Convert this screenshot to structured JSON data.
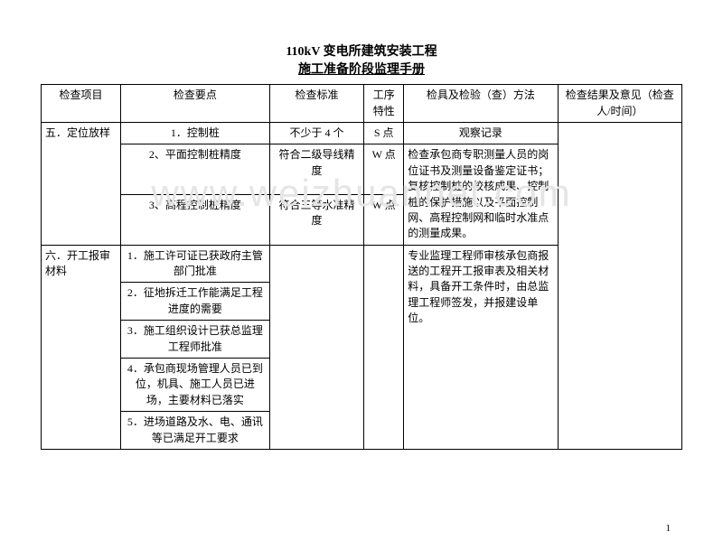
{
  "title": {
    "line1": "110kV 变电所建筑安装工程",
    "line2": "施工准备阶段监理手册"
  },
  "watermark": "www.weizhuannet.com",
  "pageNumber": "1",
  "headers": {
    "c1": "检查项目",
    "c2": "检查要点",
    "c3": "检查标准",
    "c4": "工序特性",
    "c5": "检具及检验（查）方法",
    "c6": "检查结果及意见（检查人/时间）"
  },
  "rows": {
    "sec5": {
      "title": "五．定位放样",
      "r1": {
        "point": "1．控制桩",
        "std": "不少于 4 个",
        "step": "S 点",
        "method": "观察记录"
      },
      "r2": {
        "point": "2、平面控制桩精度",
        "std": "符合二级导线精度",
        "step": "W 点",
        "method": "检查承包商专职测量人员的岗位证书及测量设备鉴定证书；复核控制桩的校核成果、控制桩的保护措施以及平面控制网、高程控制网和临时水准点的测量成果。"
      },
      "r3": {
        "point": "3、高程控制桩精度",
        "std": "符合三等水准精度",
        "step": "W 点"
      }
    },
    "sec6": {
      "title": "六．开工报审材料",
      "r1": {
        "point": "1．施工许可证已获政府主管部门批准"
      },
      "r2": {
        "point": "2．征地拆迁工作能满足工程进度的需要"
      },
      "r3": {
        "point": "3．施工组织设计已获总监理工程师批准"
      },
      "r4": {
        "point": "4．承包商现场管理人员已到位，机具、施工人员已进场，主要材料已落实"
      },
      "r5": {
        "point": "5．进场道路及水、电、通讯等已满足开工要求"
      },
      "method": "专业监理工程师审核承包商报送的工程开工报审表及相关材料，具备开工条件时，由总监理工程师签发，并报建设单位。"
    }
  }
}
